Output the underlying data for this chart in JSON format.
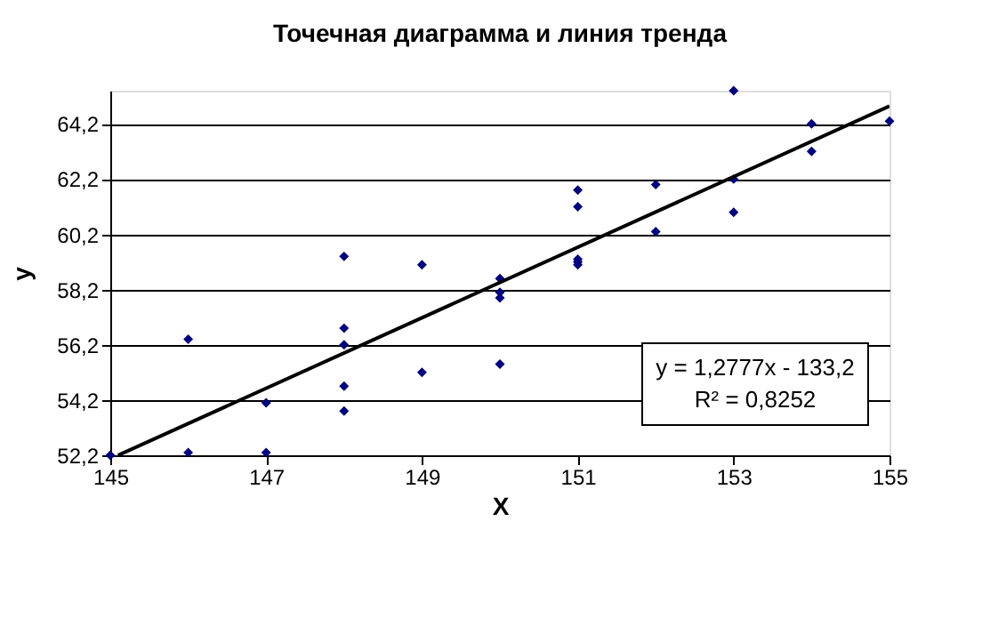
{
  "chart_data": {
    "type": "scatter",
    "title": "Точечная диаграмма и линия тренда",
    "xlabel": "X",
    "ylabel": "y",
    "xlim": [
      145,
      155
    ],
    "xticks": [
      145,
      147,
      149,
      151,
      153,
      155
    ],
    "ylim": [
      52.2,
      65.4
    ],
    "yticks": [
      {
        "value": 52.2,
        "label": "52,2"
      },
      {
        "value": 54.2,
        "label": "54,2"
      },
      {
        "value": 56.2,
        "label": "56,2"
      },
      {
        "value": 58.2,
        "label": "58,2"
      },
      {
        "value": 60.2,
        "label": "60,2"
      },
      {
        "value": 62.2,
        "label": "62,2"
      },
      {
        "value": 64.2,
        "label": "64,2"
      }
    ],
    "grid": "y",
    "marker": "diamond",
    "annotations": [
      "y = 1,2777x - 133,2",
      "R² = 0,8252"
    ],
    "series": [
      {
        "color": "#000080",
        "x": [
          145,
          146,
          146,
          147,
          147,
          148,
          148,
          148,
          148,
          148,
          149,
          149,
          150,
          150,
          150,
          150,
          151,
          151,
          151,
          151,
          151,
          152,
          152,
          153,
          153,
          153,
          154,
          154,
          155
        ],
        "values": [
          52.2,
          56.4,
          52.3,
          52.3,
          54.1,
          59.4,
          56.8,
          56.2,
          54.7,
          53.8,
          59.1,
          55.2,
          58.6,
          58.1,
          57.9,
          55.5,
          61.8,
          61.2,
          59.3,
          59.2,
          59.1,
          62.0,
          60.3,
          65.4,
          62.2,
          61.0,
          64.2,
          63.2,
          64.3
        ]
      },
      {
        "type": "line",
        "marker": "none",
        "color": "#000000",
        "x": [
          145.1,
          155
        ],
        "values": [
          52.2,
          64.84
        ]
      }
    ]
  }
}
